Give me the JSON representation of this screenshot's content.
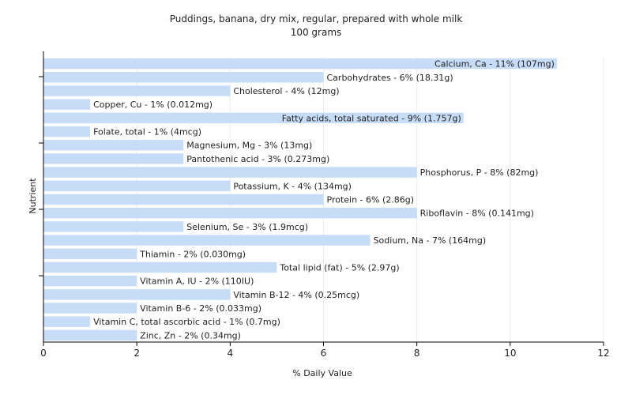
{
  "chart_data": {
    "type": "bar",
    "orientation": "horizontal",
    "title": "Puddings, banana, dry mix, regular, prepared with whole milk",
    "subtitle": "100 grams",
    "xlabel": "% Daily Value",
    "ylabel": "Nutrient",
    "xlim": [
      0,
      12
    ],
    "xticks": [
      0,
      2,
      4,
      6,
      8,
      10,
      12
    ],
    "grid": true,
    "bar_color": "#c6dcf7",
    "categories": [
      "Calcium, Ca",
      "Carbohydrates",
      "Cholesterol",
      "Copper, Cu",
      "Fatty acids, total saturated",
      "Folate, total",
      "Magnesium, Mg",
      "Pantothenic acid",
      "Phosphorus, P",
      "Potassium, K",
      "Protein",
      "Riboflavin",
      "Selenium, Se",
      "Sodium, Na",
      "Thiamin",
      "Total lipid (fat)",
      "Vitamin A, IU",
      "Vitamin B-12",
      "Vitamin B-6",
      "Vitamin C, total ascorbic acid",
      "Zinc, Zn"
    ],
    "values": [
      11,
      6,
      4,
      1,
      9,
      1,
      3,
      3,
      8,
      4,
      6,
      8,
      3,
      7,
      2,
      5,
      2,
      4,
      2,
      1,
      2
    ],
    "labels": [
      "Calcium, Ca - 11% (107mg)",
      "Carbohydrates - 6% (18.31g)",
      "Cholesterol - 4% (12mg)",
      "Copper, Cu - 1% (0.012mg)",
      "Fatty acids, total saturated - 9% (1.757g)",
      "Folate, total - 1% (4mcg)",
      "Magnesium, Mg - 3% (13mg)",
      "Pantothenic acid - 3% (0.273mg)",
      "Phosphorus, P - 8% (82mg)",
      "Potassium, K - 4% (134mg)",
      "Protein - 6% (2.86g)",
      "Riboflavin - 8% (0.141mg)",
      "Selenium, Se - 3% (1.9mcg)",
      "Sodium, Na - 7% (164mg)",
      "Thiamin - 2% (0.030mg)",
      "Total lipid (fat) - 5% (2.97g)",
      "Vitamin A, IU - 2% (110IU)",
      "Vitamin B-12 - 4% (0.25mcg)",
      "Vitamin B-6 - 2% (0.033mg)",
      "Vitamin C, total ascorbic acid - 1% (0.7mg)",
      "Zinc, Zn - 2% (0.34mg)"
    ]
  }
}
